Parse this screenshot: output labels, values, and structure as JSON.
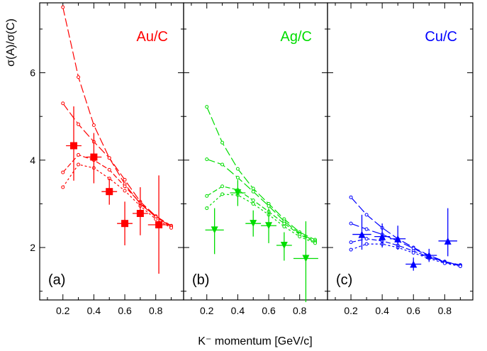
{
  "figure": {
    "ylabel": "σ(A)/σ(C)",
    "xlabel": "K⁻ momentum [GeV/c]"
  },
  "chart_data": [
    {
      "type": "scatter",
      "panel_label": "(a)",
      "title": "Au/C",
      "color": "#ff0000",
      "marker": "square",
      "xlim": [
        0.05,
        0.98
      ],
      "ylim": [
        0.8,
        7.6
      ],
      "xticks": [
        0.2,
        0.4,
        0.6,
        0.8
      ],
      "yticks": [
        2,
        4,
        6
      ],
      "grid": false,
      "data": {
        "x": [
          0.27,
          0.4,
          0.5,
          0.6,
          0.7,
          0.82
        ],
        "y": [
          4.33,
          4.07,
          3.28,
          2.55,
          2.78,
          2.52
        ],
        "xerr": [
          0.05,
          0.05,
          0.05,
          0.05,
          0.05,
          0.07
        ],
        "yerr_low": [
          0.8,
          0.6,
          0.3,
          0.5,
          0.5,
          1.12
        ],
        "yerr_high": [
          0.9,
          0.55,
          0.3,
          0.5,
          0.6,
          1.13
        ]
      },
      "curves": [
        {
          "dash": "long",
          "x": [
            0.2,
            0.3,
            0.4,
            0.5,
            0.6,
            0.7,
            0.8,
            0.9
          ],
          "y": [
            7.5,
            5.9,
            4.8,
            4.05,
            3.45,
            3.0,
            2.7,
            2.48
          ]
        },
        {
          "dash": "long",
          "x": [
            0.2,
            0.3,
            0.4,
            0.5,
            0.6,
            0.7,
            0.8,
            0.9
          ],
          "y": [
            5.3,
            4.82,
            4.42,
            4.05,
            3.55,
            3.05,
            2.72,
            2.5
          ]
        },
        {
          "dash": "medium",
          "x": [
            0.2,
            0.3,
            0.4,
            0.5,
            0.6,
            0.7,
            0.8,
            0.9
          ],
          "y": [
            3.72,
            4.12,
            4.0,
            3.78,
            3.4,
            3.02,
            2.7,
            2.48
          ]
        },
        {
          "dash": "short",
          "x": [
            0.2,
            0.3,
            0.4,
            0.5,
            0.6,
            0.7,
            0.8,
            0.9
          ],
          "y": [
            3.38,
            3.9,
            3.82,
            3.58,
            3.3,
            2.95,
            2.65,
            2.45
          ]
        }
      ]
    },
    {
      "type": "scatter",
      "panel_label": "(b)",
      "title": "Ag/C",
      "color": "#00dd00",
      "marker": "triangle-down",
      "xlim": [
        0.05,
        0.98
      ],
      "ylim": [
        0.8,
        7.6
      ],
      "xticks": [
        0.2,
        0.4,
        0.6,
        0.8
      ],
      "yticks": [
        2,
        4,
        6
      ],
      "grid": false,
      "data": {
        "x": [
          0.25,
          0.4,
          0.5,
          0.6,
          0.7,
          0.84
        ],
        "y": [
          2.4,
          3.25,
          2.55,
          2.5,
          2.05,
          1.75
        ],
        "xerr": [
          0.06,
          0.05,
          0.05,
          0.05,
          0.05,
          0.08
        ],
        "yerr_low": [
          0.55,
          0.3,
          0.3,
          0.4,
          0.35,
          1.0
        ],
        "yerr_high": [
          0.5,
          0.3,
          0.3,
          0.4,
          0.3,
          0.85
        ]
      },
      "curves": [
        {
          "dash": "long",
          "x": [
            0.2,
            0.3,
            0.4,
            0.5,
            0.6,
            0.7,
            0.8,
            0.9
          ],
          "y": [
            5.22,
            4.4,
            3.8,
            3.35,
            3.0,
            2.65,
            2.35,
            2.18
          ]
        },
        {
          "dash": "long",
          "x": [
            0.2,
            0.3,
            0.4,
            0.5,
            0.6,
            0.7,
            0.8,
            0.9
          ],
          "y": [
            4.02,
            3.9,
            3.6,
            3.28,
            2.95,
            2.6,
            2.32,
            2.15
          ]
        },
        {
          "dash": "medium",
          "x": [
            0.2,
            0.3,
            0.4,
            0.5,
            0.6,
            0.7,
            0.8,
            0.9
          ],
          "y": [
            3.18,
            3.4,
            3.32,
            3.08,
            2.82,
            2.55,
            2.3,
            2.12
          ]
        },
        {
          "dash": "short",
          "x": [
            0.2,
            0.3,
            0.4,
            0.5,
            0.6,
            0.7,
            0.8,
            0.9
          ],
          "y": [
            2.9,
            3.22,
            3.2,
            3.0,
            2.75,
            2.48,
            2.25,
            2.1
          ]
        }
      ]
    },
    {
      "type": "scatter",
      "panel_label": "(c)",
      "title": "Cu/C",
      "color": "#0000ff",
      "marker": "triangle-up",
      "xlim": [
        0.05,
        0.98
      ],
      "ylim": [
        0.8,
        7.6
      ],
      "xticks": [
        0.2,
        0.4,
        0.6,
        0.8
      ],
      "yticks": [
        2,
        4,
        6
      ],
      "grid": false,
      "data": {
        "x": [
          0.27,
          0.4,
          0.5,
          0.6,
          0.7,
          0.82
        ],
        "y": [
          2.3,
          2.25,
          2.2,
          1.62,
          1.82,
          2.15
        ],
        "xerr": [
          0.06,
          0.05,
          0.05,
          0.05,
          0.05,
          0.06
        ],
        "yerr_low": [
          0.35,
          0.25,
          0.25,
          0.15,
          0.15,
          0.35
        ],
        "yerr_high": [
          0.45,
          0.3,
          0.3,
          0.15,
          0.15,
          0.75
        ]
      },
      "curves": [
        {
          "dash": "long",
          "x": [
            0.2,
            0.3,
            0.4,
            0.5,
            0.6,
            0.7,
            0.8,
            0.9
          ],
          "y": [
            3.15,
            2.75,
            2.45,
            2.2,
            2.0,
            1.82,
            1.68,
            1.6
          ]
        },
        {
          "dash": "long",
          "x": [
            0.2,
            0.3,
            0.4,
            0.5,
            0.6,
            0.7,
            0.8,
            0.9
          ],
          "y": [
            2.55,
            2.42,
            2.3,
            2.15,
            1.98,
            1.8,
            1.67,
            1.6
          ]
        },
        {
          "dash": "medium",
          "x": [
            0.2,
            0.3,
            0.4,
            0.5,
            0.6,
            0.7,
            0.8,
            0.9
          ],
          "y": [
            2.12,
            2.2,
            2.15,
            2.05,
            1.92,
            1.78,
            1.66,
            1.58
          ]
        },
        {
          "dash": "short",
          "x": [
            0.2,
            0.3,
            0.4,
            0.5,
            0.6,
            0.7,
            0.8,
            0.9
          ],
          "y": [
            1.95,
            2.08,
            2.08,
            2.0,
            1.88,
            1.75,
            1.64,
            1.57
          ]
        }
      ]
    }
  ]
}
